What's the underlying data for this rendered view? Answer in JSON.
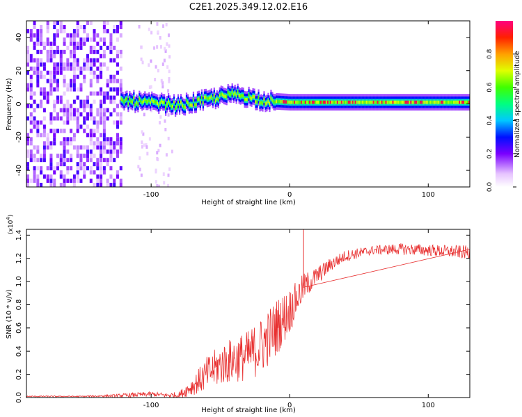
{
  "title": "C2E1.2025.349.12.02.E16",
  "chart_data": [
    {
      "type": "heatmap",
      "xlabel": "Height of straight line (km)",
      "ylabel": "Frequency (Hz)",
      "xlim": [
        -190,
        130
      ],
      "ylim": [
        -50,
        50
      ],
      "x_ticks": [
        -100,
        0,
        100
      ],
      "y_ticks": [
        -40,
        -20,
        0,
        20,
        40
      ],
      "colorbar": {
        "label": "Normalized spectral amplitude",
        "range": [
          0.0,
          1.0
        ],
        "ticks": [
          0.0,
          0.2,
          0.4,
          0.6,
          0.8
        ],
        "tick_labels": [
          "0.0",
          "0.2",
          "0.4",
          "0.6",
          "0.8"
        ]
      },
      "features": [
        {
          "name": "noise region",
          "x_range": [
            -190,
            -122
          ],
          "freq_range": [
            -50,
            50
          ],
          "amplitude": 0.2
        },
        {
          "name": "scattered noise",
          "x_range": [
            -110,
            -85
          ],
          "freq_range": [
            -50,
            50
          ],
          "amplitude": 0.05
        },
        {
          "name": "signal band",
          "x_range": [
            -122,
            130
          ],
          "centre_freq": [
            [
              -120,
              2
            ],
            [
              -80,
              -1
            ],
            [
              -40,
              6
            ],
            [
              -20,
              2
            ],
            [
              0,
              1
            ],
            [
              50,
              1
            ],
            [
              130,
              1
            ]
          ],
          "amplitude": 0.6
        },
        {
          "name": "peak amplitude",
          "x_range": [
            -5,
            130
          ],
          "amplitude": 0.95
        }
      ]
    },
    {
      "type": "line",
      "xlabel": "Height of straight line (km)",
      "ylabel": "SNR (10 * v/v)",
      "y_scale": "(x10^4)",
      "y_scale_base": "(x10",
      "y_scale_exp": "4",
      "y_scale_close": ")",
      "xlim": [
        -190,
        130
      ],
      "ylim": [
        0,
        1.45
      ],
      "x_ticks": [
        -100,
        0,
        100
      ],
      "y_ticks": [
        0.0,
        0.2,
        0.4,
        0.6,
        0.8,
        1.0,
        1.2,
        1.4
      ],
      "y_tick_labels": [
        "0.0",
        "0.2",
        "0.4",
        "0.6",
        "0.8",
        "1.0",
        "1.2",
        "1.4"
      ],
      "color": "#e83030",
      "series": [
        {
          "name": "SNR",
          "x": [
            -190,
            -170,
            -150,
            -130,
            -115,
            -100,
            -90,
            -80,
            -70,
            -60,
            -50,
            -40,
            -30,
            -20,
            -10,
            0,
            5,
            10,
            15,
            20,
            30,
            40,
            60,
            80,
            100,
            130
          ],
          "y": [
            0.01,
            0.01,
            0.01,
            0.015,
            0.02,
            0.03,
            0.02,
            0.02,
            0.1,
            0.2,
            0.28,
            0.33,
            0.36,
            0.45,
            0.6,
            0.75,
            0.85,
            0.95,
            1.0,
            1.05,
            1.15,
            1.22,
            1.27,
            1.28,
            1.27,
            1.25
          ],
          "spread": [
            0.005,
            0.005,
            0.005,
            0.01,
            0.02,
            0.02,
            0.02,
            0.03,
            0.08,
            0.15,
            0.18,
            0.2,
            0.22,
            0.25,
            0.25,
            0.2,
            0.15,
            0.12,
            0.1,
            0.08,
            0.06,
            0.05,
            0.04,
            0.05,
            0.05,
            0.06
          ]
        }
      ],
      "annotations": [
        {
          "x": 10,
          "y": 1.45,
          "text": "spike"
        }
      ]
    }
  ]
}
